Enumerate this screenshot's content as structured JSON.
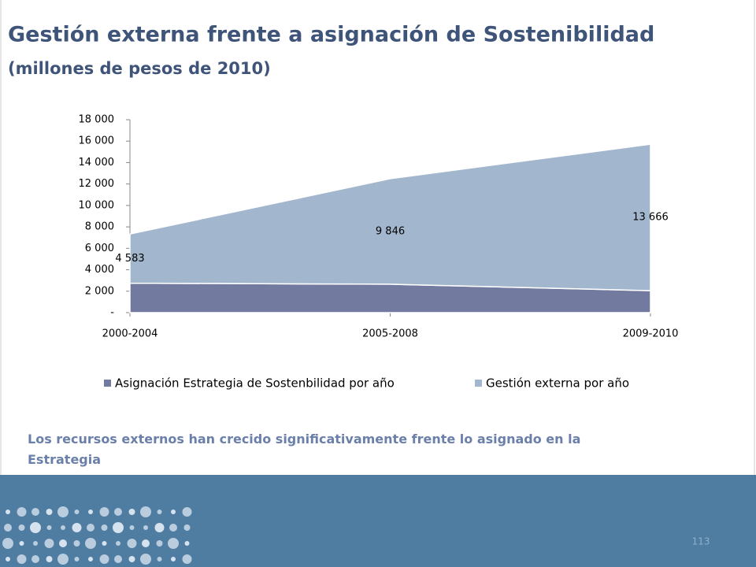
{
  "chart_data": {
    "type": "stacked_area",
    "title": "Gestión externa frente a asignación de Sostenibilidad",
    "subtitle": "(millones de pesos de 2010)",
    "categories": [
      "2000-2004",
      "2005-2008",
      "2009-2010"
    ],
    "series": [
      {
        "name": "Asignación Estrategia de Sostenbilidad por año",
        "color": "#727aa0",
        "values": [
          2750,
          2650,
          2050
        ]
      },
      {
        "name": "Gestión externa por año",
        "color": "#a2b6cd",
        "values": [
          4583,
          9846,
          13666
        ],
        "value_labels": [
          "4 583",
          "9 846",
          "13 666"
        ]
      }
    ],
    "ylim": [
      0,
      18000
    ],
    "yticks": [
      {
        "value": 0,
        "label": "-"
      },
      {
        "value": 2000,
        "label": "2 000"
      },
      {
        "value": 4000,
        "label": "4 000"
      },
      {
        "value": 6000,
        "label": "6 000"
      },
      {
        "value": 8000,
        "label": "8 000"
      },
      {
        "value": 10000,
        "label": "10 000"
      },
      {
        "value": 12000,
        "label": "12 000"
      },
      {
        "value": 14000,
        "label": "14 000"
      },
      {
        "value": 16000,
        "label": "16 000"
      },
      {
        "value": 18000,
        "label": "18 000"
      }
    ],
    "legend": "bottom"
  },
  "caption": "Los recursos externos han crecido significativamente frente lo asignado en la Estrategia",
  "page_number": "113"
}
